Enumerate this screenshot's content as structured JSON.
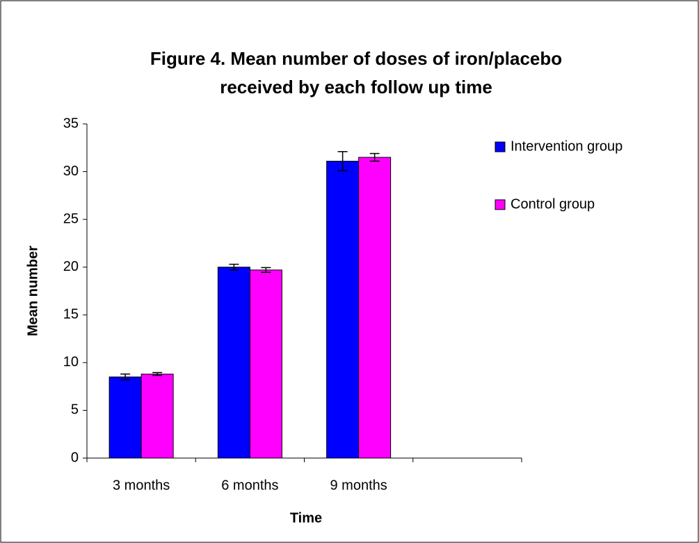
{
  "chart_data": {
    "type": "bar",
    "title": [
      "Figure 4. Mean number of doses of iron/placebo",
      "received by each follow up time"
    ],
    "x_label": "Time",
    "y_label": "Mean number",
    "categories": [
      "3 months",
      "6 months",
      "9 months",
      null
    ],
    "series": [
      {
        "name": "Intervention group",
        "color": "#0000ff",
        "values": [
          8.5,
          20.0,
          31.1,
          null
        ],
        "errors": [
          0.3,
          0.3,
          1.0,
          null
        ]
      },
      {
        "name": "Control group",
        "color": "#ff00ff",
        "values": [
          8.8,
          19.7,
          31.5,
          null
        ],
        "errors": [
          0.15,
          0.25,
          0.4,
          null
        ]
      }
    ],
    "ylim": [
      0,
      35
    ],
    "yticks": [
      0,
      5,
      10,
      15,
      20,
      25,
      30,
      35
    ],
    "grid": false,
    "legend": "right"
  }
}
